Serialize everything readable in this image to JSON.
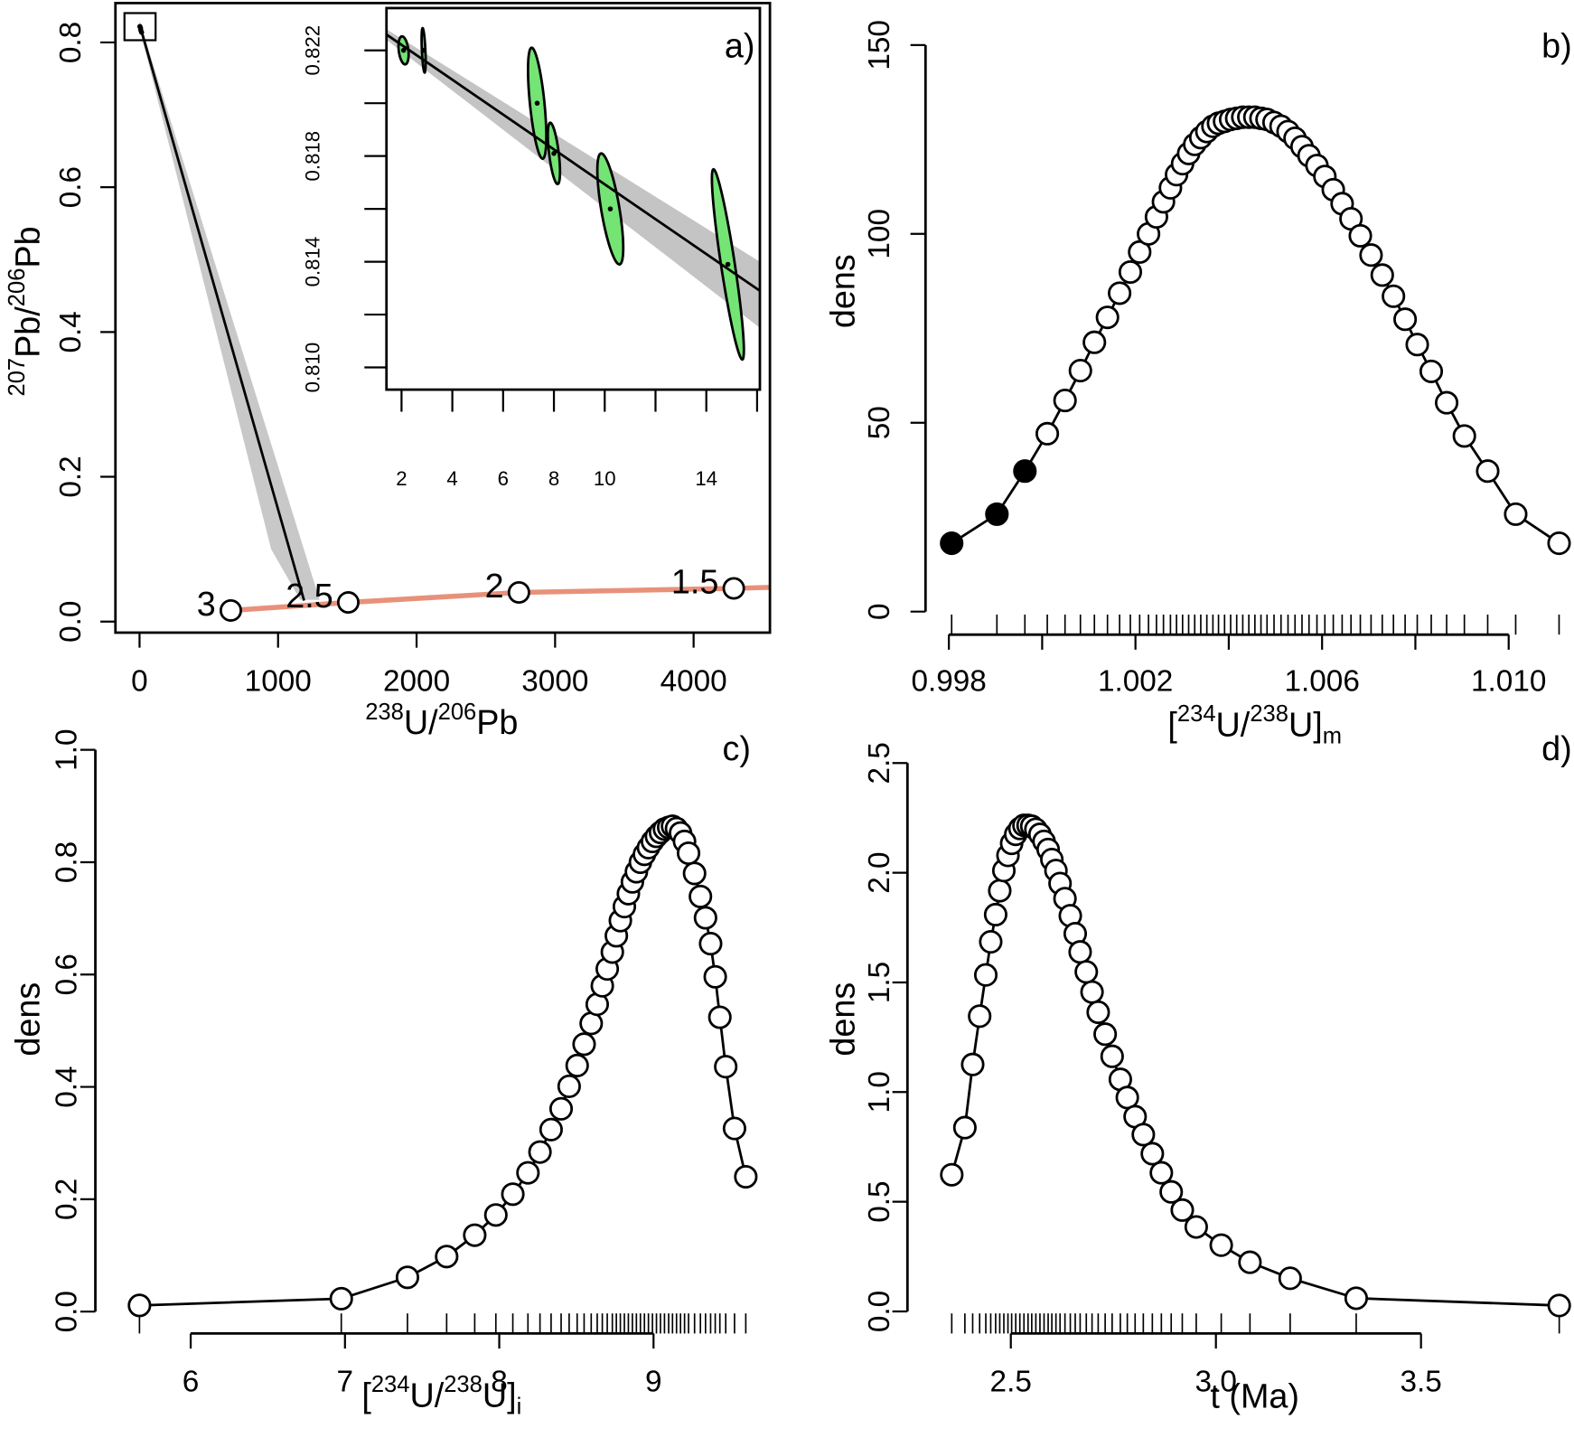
{
  "chart_data": [
    {
      "type": "concordia",
      "label": "a)",
      "xlabel": [
        "238",
        "U/",
        "206",
        "Pb"
      ],
      "ylabel": [
        "207",
        "Pb/",
        "206",
        "Pb"
      ],
      "xlim": [
        -174,
        4551
      ],
      "ylim": [
        -0.0153,
        0.8544
      ],
      "xticks": [
        0,
        1000,
        2000,
        3000,
        4000
      ],
      "yticks": [
        {
          "value": 0,
          "label": "0.0"
        },
        0.2,
        0.4,
        0.6,
        0.8
      ],
      "band": {
        "color": "#c8c8c8",
        "x": [
          0,
          1300,
          1160,
          950,
          0
        ],
        "y": [
          0.83,
          0.03,
          0.03,
          0.1,
          0.82
        ]
      },
      "discordia": {
        "color": "#000000",
        "x": [
          0,
          1188
        ],
        "y": [
          0.825,
          0.029
        ]
      },
      "concordia": {
        "color": "#e8917a",
        "x": [
          659,
          1507,
          2739,
          4290,
          4551
        ],
        "y": [
          0.0153,
          0.0264,
          0.0402,
          0.0458,
          0.0472
        ]
      },
      "age_ticks": {
        "labels": [
          "3",
          "2.5",
          "2",
          "1.5"
        ],
        "x": [
          659,
          1507,
          2739,
          4290
        ],
        "y": [
          0.0153,
          0.0264,
          0.0402,
          0.0458
        ]
      }
    },
    {
      "type": "ellipse",
      "xlim": [
        1.407,
        16.11
      ],
      "ylim": [
        0.80916,
        0.8236
      ],
      "xticks": [
        2,
        4,
        6,
        8,
        10,
        14
      ],
      "minor_xticks": [
        12,
        16
      ],
      "yticks": [
        {
          "value": 0.81,
          "label": "0.810"
        },
        0.814,
        0.818,
        0.822
      ],
      "minor_yticks": [
        0.812,
        0.816,
        0.82
      ],
      "band": {
        "color": "#c4c4c4",
        "x": [
          1.407,
          16.11,
          16.11,
          1.407
        ],
        "y": [
          0.8228,
          0.814,
          0.8115,
          0.8224
        ]
      },
      "fit": {
        "color": "#000000",
        "x": [
          1.407,
          16.11
        ],
        "y": [
          0.8226,
          0.8129
        ]
      },
      "ellipses": {
        "color": "#74e474",
        "x": [
          2.08,
          2.87,
          7.34,
          8.0,
          10.22,
          14.85
        ],
        "y": [
          0.822,
          0.822,
          0.82,
          0.8181,
          0.816,
          0.8139
        ],
        "sx": [
          0.2,
          0.08,
          0.36,
          0.24,
          0.51,
          0.63
        ],
        "sy": [
          0.00053,
          0.00084,
          0.0021,
          0.00116,
          0.0021,
          0.0036
        ],
        "rho": [
          -0.3,
          -0.5,
          -0.6,
          -0.6,
          -0.7,
          -0.9
        ]
      }
    },
    {
      "type": "line",
      "label": "b)",
      "xlabel": [
        "[",
        "234",
        "U/",
        "238",
        "U]",
        "m"
      ],
      "ylabel": "dens",
      "xlim": [
        0.9975,
        1.0114
      ],
      "ylim": [
        -6.1,
        156.6
      ],
      "xticks": [
        0.998,
        1.002,
        1.006,
        {
          "value": 1.01,
          "label": "1.010"
        }
      ],
      "minor_xticks": [
        1,
        1.004,
        1.008
      ],
      "yticks": [
        0,
        50,
        100,
        150
      ],
      "rug": true,
      "series": [
        {
          "color": "#000000",
          "x": [
            0.99806,
            0.99903,
            0.99963
          ],
          "values": [
            18.1,
            25.8,
            37.2
          ]
        },
        {
          "color": "#ffffff",
          "x": [
            1.00011,
            1.00049,
            1.00082,
            1.00112,
            1.0014,
            1.00166,
            1.00189,
            1.00209,
            1.00228,
            1.00245,
            1.0026,
            1.00275,
            1.00288,
            1.00301,
            1.00314,
            1.00327,
            1.0034,
            1.00353,
            1.00366,
            1.00378,
            1.00391,
            1.00404,
            1.00417,
            1.0043,
            1.00443,
            1.00456,
            1.00469,
            1.00482,
            1.00497,
            1.00512,
            1.00527,
            1.00542,
            1.00557,
            1.00572,
            1.00589,
            1.00606,
            1.00624,
            1.00643,
            1.00662,
            1.00682,
            1.00705,
            1.00729,
            1.00753,
            1.00778,
            1.00804,
            1.00834,
            1.00867,
            1.00905,
            1.00955,
            1.01015,
            1.01108
          ],
          "values": [
            47.1,
            55.9,
            63.8,
            71.3,
            77.9,
            84.3,
            89.9,
            95.2,
            100,
            104.5,
            108.5,
            112.2,
            115.7,
            118.6,
            121.3,
            123.7,
            125.5,
            127.1,
            128.5,
            129.3,
            129.8,
            130.3,
            130.6,
            130.9,
            130.9,
            130.9,
            130.6,
            130.3,
            129.5,
            128.5,
            127.1,
            125.3,
            123.1,
            120.7,
            118.1,
            115.2,
            111.7,
            108,
            104,
            99.5,
            94.4,
            89.1,
            83.5,
            77.4,
            70.7,
            63.6,
            55.3,
            46.5,
            37.2,
            25.8,
            18.1
          ]
        }
      ]
    },
    {
      "type": "line",
      "label": "c)",
      "xlabel": [
        "[",
        "234",
        "U/",
        "238",
        "U]",
        "i"
      ],
      "ylabel": "dens",
      "xlim": [
        5.382,
        9.709
      ],
      "ylim": [
        -0.039,
        1.021
      ],
      "xticks": [
        6,
        7,
        8,
        9
      ],
      "yticks": [
        {
          "value": 0,
          "label": "0.0"
        },
        0.2,
        0.4,
        0.6,
        0.8,
        {
          "value": 1,
          "label": "1.0"
        }
      ],
      "rug": true,
      "series": [
        {
          "color": "#ffffff",
          "x": [
            5.668,
            6.976,
            7.405,
            7.659,
            7.841,
            7.978,
            8.088,
            8.186,
            8.264,
            8.336,
            8.401,
            8.453,
            8.505,
            8.55,
            8.596,
            8.635,
            8.668,
            8.7,
            8.733,
            8.759,
            8.785,
            8.811,
            8.837,
            8.863,
            8.889,
            8.915,
            8.941,
            8.967,
            8.993,
            9.019,
            9.045,
            9.071,
            9.098,
            9.123,
            9.149,
            9.175,
            9.201,
            9.227,
            9.266,
            9.304,
            9.337,
            9.37,
            9.4,
            9.43,
            9.468,
            9.525,
            9.598
          ],
          "values": [
            0.011,
            0.023,
            0.061,
            0.098,
            0.136,
            0.172,
            0.209,
            0.247,
            0.284,
            0.324,
            0.361,
            0.401,
            0.438,
            0.476,
            0.513,
            0.547,
            0.58,
            0.61,
            0.64,
            0.669,
            0.696,
            0.721,
            0.744,
            0.765,
            0.783,
            0.8,
            0.814,
            0.826,
            0.837,
            0.846,
            0.853,
            0.859,
            0.862,
            0.864,
            0.86,
            0.852,
            0.837,
            0.816,
            0.78,
            0.739,
            0.701,
            0.655,
            0.596,
            0.524,
            0.436,
            0.326,
            0.24
          ]
        }
      ]
    },
    {
      "type": "line",
      "label": "d)",
      "xlabel": [
        "t (Ma)"
      ],
      "ylabel": "dens",
      "xlim": [
        2.248,
        3.873
      ],
      "ylim": [
        -0.1007,
        2.614
      ],
      "xticks": [
        2.5,
        {
          "value": 3,
          "label": "3.0"
        },
        3.5
      ],
      "yticks": [
        {
          "value": 0,
          "label": "0.0"
        },
        0.5,
        {
          "value": 1,
          "label": "1.0"
        },
        1.5,
        {
          "value": 2,
          "label": "2.0"
        },
        2.5
      ],
      "rug": true,
      "series": [
        {
          "color": "#ffffff",
          "x": [
            2.356,
            2.388,
            2.407,
            2.424,
            2.439,
            2.451,
            2.463,
            2.473,
            2.483,
            2.493,
            2.502,
            2.512,
            2.522,
            2.532,
            2.542,
            2.551,
            2.561,
            2.571,
            2.581,
            2.591,
            2.6,
            2.61,
            2.62,
            2.632,
            2.645,
            2.657,
            2.669,
            2.684,
            2.698,
            2.713,
            2.73,
            2.747,
            2.767,
            2.784,
            2.803,
            2.823,
            2.845,
            2.867,
            2.891,
            2.918,
            2.952,
            3.013,
            3.083,
            3.181,
            3.342,
            3.837
          ],
          "values": [
            0.623,
            0.838,
            1.126,
            1.346,
            1.534,
            1.685,
            1.809,
            1.918,
            2.01,
            2.079,
            2.134,
            2.175,
            2.202,
            2.216,
            2.216,
            2.212,
            2.198,
            2.175,
            2.143,
            2.106,
            2.06,
            2.01,
            1.951,
            1.882,
            1.804,
            1.722,
            1.639,
            1.548,
            1.456,
            1.364,
            1.264,
            1.163,
            1.058,
            0.975,
            0.888,
            0.806,
            0.719,
            0.632,
            0.545,
            0.462,
            0.385,
            0.302,
            0.224,
            0.151,
            0.06,
            0.027
          ]
        }
      ]
    }
  ]
}
